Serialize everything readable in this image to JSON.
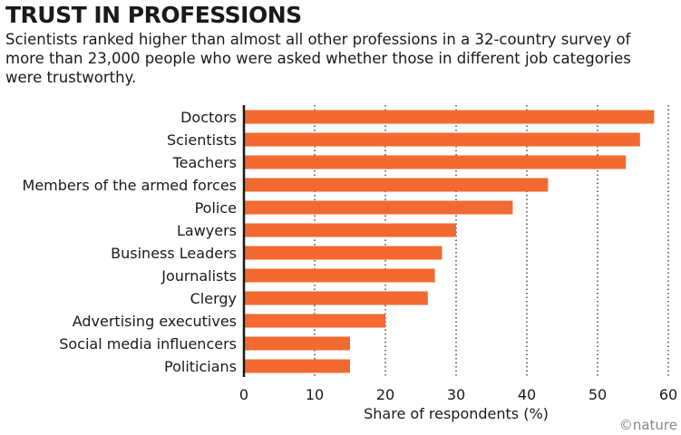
{
  "header": {
    "title": "TRUST IN PROFESSIONS",
    "subtitle": "Scientists ranked higher than almost all other professions in a 32-country survey of more than 23,000 people who were asked whether those in different job categories were trustworthy."
  },
  "credit": "©nature",
  "colors": {
    "bar": "#f26a31",
    "gridline": "#333333",
    "axis": "#1a1a1a"
  },
  "chart_data": {
    "type": "bar",
    "orientation": "horizontal",
    "categories": [
      "Doctors",
      "Scientists",
      "Teachers",
      "Members of the armed forces",
      "Police",
      "Lawyers",
      "Business Leaders",
      "Journalists",
      "Clergy",
      "Advertising executives",
      "Social media influencers",
      "Politicians"
    ],
    "values": [
      58,
      56,
      54,
      43,
      38,
      30,
      28,
      27,
      26,
      20,
      15,
      15
    ],
    "xlabel": "Share of respondents (%)",
    "xlim": [
      0,
      60
    ],
    "xticks": [
      0,
      10,
      20,
      30,
      40,
      50,
      60
    ],
    "grid": "vertical dotted"
  }
}
